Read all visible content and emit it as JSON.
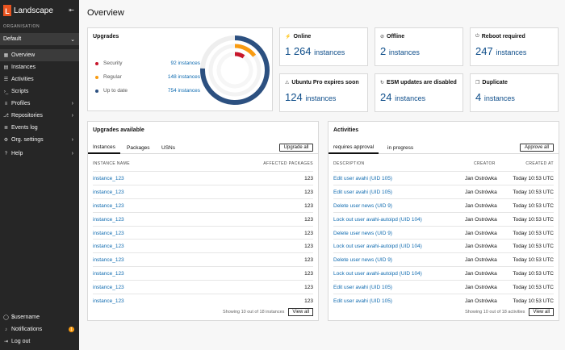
{
  "app": {
    "name": "Landscape",
    "logo_letter": "L"
  },
  "sidebar": {
    "org_label": "ORGANISATION",
    "org_value": "Default",
    "items": [
      {
        "label": "Overview",
        "icon": "overview-icon",
        "glyph": "▦"
      },
      {
        "label": "Instances",
        "icon": "instances-icon",
        "glyph": "▤"
      },
      {
        "label": "Activities",
        "icon": "activities-icon",
        "glyph": "☰"
      },
      {
        "label": "Scripts",
        "icon": "scripts-icon",
        "glyph": "›_"
      },
      {
        "label": "Profiles",
        "icon": "profiles-icon",
        "glyph": "≡"
      },
      {
        "label": "Repositories",
        "icon": "repositories-icon",
        "glyph": "⎇"
      },
      {
        "label": "Events log",
        "icon": "events-log-icon",
        "glyph": "≣"
      },
      {
        "label": "Org. settings",
        "icon": "settings-icon",
        "glyph": "⚙"
      },
      {
        "label": "Help",
        "icon": "help-icon",
        "glyph": "?"
      }
    ],
    "bottom": [
      {
        "label": "$username",
        "icon": "user-icon",
        "glyph": "◯"
      },
      {
        "label": "Notifications",
        "icon": "bell-icon",
        "glyph": "♪",
        "badge": "1"
      },
      {
        "label": "Log out",
        "icon": "logout-icon",
        "glyph": "⇥"
      }
    ]
  },
  "page": {
    "title": "Overview"
  },
  "upgrades": {
    "title": "Upgrades",
    "items": [
      {
        "label": "Security",
        "value": "92 instances",
        "color": "#c7162b"
      },
      {
        "label": "Regular",
        "value": "148 instances",
        "color": "#f99b11"
      },
      {
        "label": "Up to date",
        "value": "754 instances",
        "color": "#2c5080"
      }
    ]
  },
  "stats": [
    {
      "title": "Online",
      "icon": "plug-icon",
      "glyph": "⚡",
      "count": "1 264",
      "unit": "instances"
    },
    {
      "title": "Offline",
      "icon": "plug-off-icon",
      "glyph": "⊘",
      "count": "2",
      "unit": "instances"
    },
    {
      "title": "Reboot required",
      "icon": "power-icon",
      "glyph": "⏻",
      "count": "247",
      "unit": "instances"
    },
    {
      "title": "Ubuntu Pro expires soon",
      "icon": "warning-icon",
      "glyph": "⚠",
      "count": "124",
      "unit": "instances"
    },
    {
      "title": "ESM updates are disabled",
      "icon": "refresh-icon",
      "glyph": "↻",
      "count": "24",
      "unit": "instances"
    },
    {
      "title": "Duplicate",
      "icon": "copy-icon",
      "glyph": "❐",
      "count": "4",
      "unit": "instances"
    }
  ],
  "upgrades_available": {
    "title": "Upgrades available",
    "tabs": [
      "Instances",
      "Packages",
      "USNs"
    ],
    "action": "Upgrade all",
    "columns": [
      "INSTANCE NAME",
      "AFFECTED PACKAGES"
    ],
    "rows": [
      {
        "name": "instance_123",
        "count": "123"
      },
      {
        "name": "instance_123",
        "count": "123"
      },
      {
        "name": "instance_123",
        "count": "123"
      },
      {
        "name": "instance_123",
        "count": "123"
      },
      {
        "name": "instance_123",
        "count": "123"
      },
      {
        "name": "instance_123",
        "count": "123"
      },
      {
        "name": "instance_123",
        "count": "123"
      },
      {
        "name": "instance_123",
        "count": "123"
      },
      {
        "name": "instance_123",
        "count": "123"
      },
      {
        "name": "instance_123",
        "count": "123"
      }
    ],
    "footer": "Showing 10 out of 18 instances",
    "view_all": "View all"
  },
  "activities": {
    "title": "Activities",
    "tabs": [
      "requires approval",
      "in progress"
    ],
    "action": "Approve all",
    "columns": [
      "DESCRIPTION",
      "CREATOR",
      "CREATED AT"
    ],
    "rows": [
      {
        "desc": "Edit user avahi (UID 105)",
        "creator": "Jan Ostrówka",
        "time": "Today 10:53 UTC"
      },
      {
        "desc": "Edit user avahi (UID 105)",
        "creator": "Jan Ostrówka",
        "time": "Today 10:53 UTC"
      },
      {
        "desc": "Delete user news (UID 9)",
        "creator": "Jan Ostrówka",
        "time": "Today 10:53 UTC"
      },
      {
        "desc": "Lock out user avahi-autoipd (UID 104)",
        "creator": "Jan Ostrówka",
        "time": "Today 10:53 UTC"
      },
      {
        "desc": "Delete user news (UID 9)",
        "creator": "Jan Ostrówka",
        "time": "Today 10:53 UTC"
      },
      {
        "desc": "Lock out user avahi-autoipd (UID 104)",
        "creator": "Jan Ostrówka",
        "time": "Today 10:53 UTC"
      },
      {
        "desc": "Delete user news (UID 9)",
        "creator": "Jan Ostrówka",
        "time": "Today 10:53 UTC"
      },
      {
        "desc": "Lock out user avahi-autoipd (UID 104)",
        "creator": "Jan Ostrówka",
        "time": "Today 10:53 UTC"
      },
      {
        "desc": "Edit user avahi (UID 105)",
        "creator": "Jan Ostrówka",
        "time": "Today 10:53 UTC"
      },
      {
        "desc": "Edit user avahi (UID 105)",
        "creator": "Jan Ostrówka",
        "time": "Today 10:53 UTC"
      }
    ],
    "footer": "Showing 10 out of 18 activities",
    "view_all": "View all"
  }
}
